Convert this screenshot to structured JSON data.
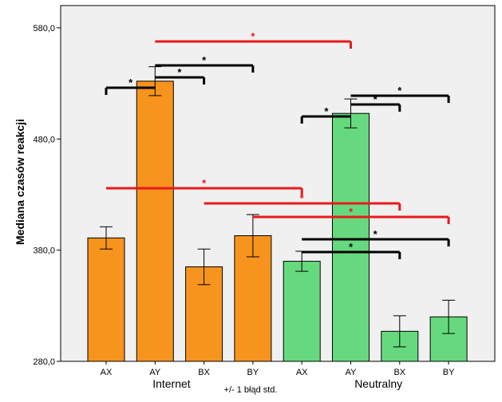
{
  "chart_data": {
    "type": "bar",
    "ylabel": "Mediana czasów reakcji",
    "ylim": [
      280,
      600
    ],
    "yticks": [
      "280,0",
      "380,0",
      "480,0",
      "580,0"
    ],
    "ytick_values": [
      280,
      380,
      480,
      580
    ],
    "groups": [
      {
        "name": "Internet",
        "color": "#f7941d",
        "categories": [
          "AX",
          "AY",
          "BX",
          "BY"
        ],
        "values": [
          391,
          532,
          365,
          393
        ],
        "errors": [
          10,
          13,
          16,
          19
        ]
      },
      {
        "name": "Neutralny",
        "color": "#66d97e",
        "categories": [
          "AX",
          "AY",
          "BX",
          "BY"
        ],
        "values": [
          370,
          503,
          307,
          320
        ],
        "errors": [
          9,
          13,
          14,
          15
        ]
      }
    ],
    "footnote": "+/- 1 błąd std.",
    "significance": [
      {
        "from": 1,
        "to": 2,
        "level": 3,
        "label": "*",
        "color": "#000000"
      },
      {
        "from": 1,
        "to": 3,
        "level": 2,
        "label": "*",
        "color": "#000000"
      },
      {
        "from": 1,
        "to": 0,
        "level": 2,
        "label": "*",
        "color": "#000000"
      },
      {
        "from": 1,
        "to": 5,
        "level": 4,
        "label": "*",
        "color": "#e8191a"
      },
      {
        "from": 5,
        "to": 4,
        "level": 2,
        "label": "*",
        "color": "#000000"
      },
      {
        "from": 5,
        "to": 6,
        "level": 2,
        "label": "*",
        "color": "#000000"
      },
      {
        "from": 5,
        "to": 7,
        "level": 3,
        "label": "*",
        "color": "#000000"
      },
      {
        "from": 0,
        "to": 4,
        "level": 2,
        "label": "*",
        "color": "#e8191a"
      },
      {
        "from": 2,
        "to": 6,
        "level": 3,
        "label": "*",
        "color": "#e8191a"
      },
      {
        "from": 3,
        "to": 7,
        "level": 4,
        "label": "*",
        "color": "#e8191a"
      },
      {
        "from": 4,
        "to": 7,
        "level": 3,
        "label": "*",
        "color": "#000000"
      },
      {
        "from": 4,
        "to": 6,
        "level": 2,
        "label": "*",
        "color": "#000000"
      }
    ],
    "colors": {
      "plot_bg": "#f0f0f0",
      "axis": "#000000"
    }
  }
}
